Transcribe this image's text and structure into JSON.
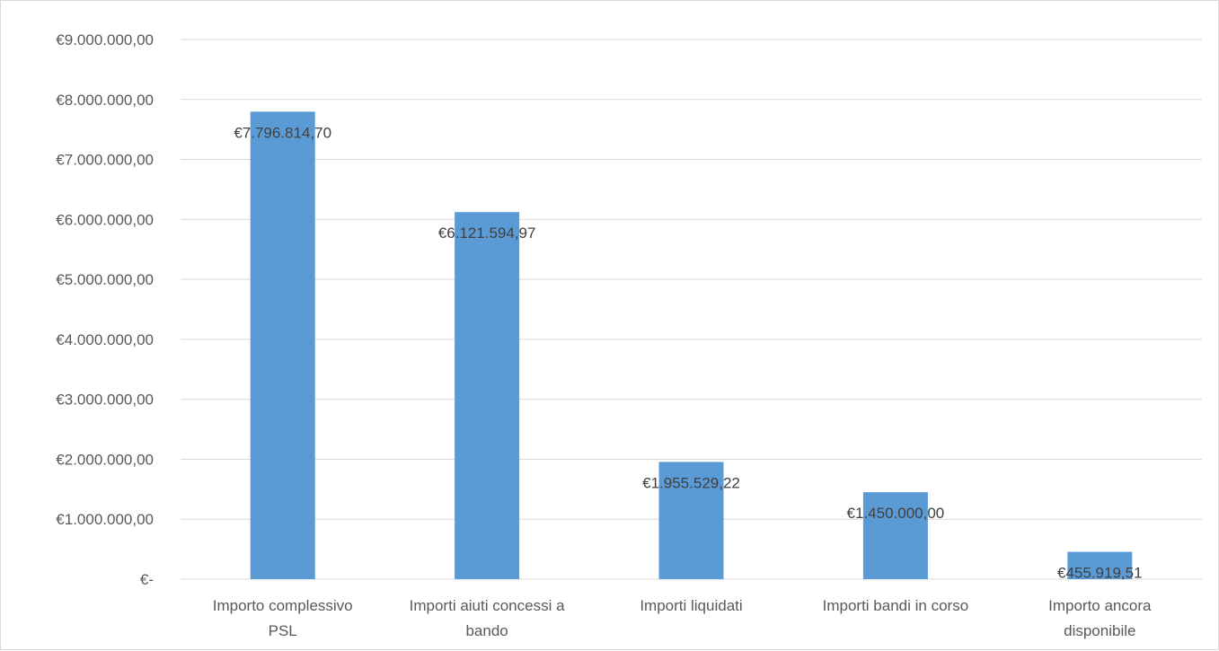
{
  "chart_data": {
    "type": "bar",
    "categories": [
      [
        "Importo complessivo",
        "PSL"
      ],
      [
        "Importi aiuti concessi a",
        "bando"
      ],
      [
        "Importi liquidati"
      ],
      [
        "Importi bandi in corso"
      ],
      [
        "Importo ancora",
        "disponibile"
      ]
    ],
    "values": [
      7796814.7,
      6121594.97,
      1955529.22,
      1450000.0,
      455919.51
    ],
    "data_labels": [
      "€7.796.814,70",
      "€6.121.594,97",
      "€1.955.529,22",
      "€1.450.000,00",
      "€455.919,51"
    ],
    "ylim": [
      0,
      9000000
    ],
    "yticks": [
      0,
      1000000,
      2000000,
      3000000,
      4000000,
      5000000,
      6000000,
      7000000,
      8000000,
      9000000
    ],
    "ytick_labels": [
      "€-",
      "€1.000.000,00",
      "€2.000.000,00",
      "€3.000.000,00",
      "€4.000.000,00",
      "€5.000.000,00",
      "€6.000.000,00",
      "€7.000.000,00",
      "€8.000.000,00",
      "€9.000.000,00"
    ],
    "title": "",
    "xlabel": "",
    "ylabel": "",
    "grid": true,
    "legend": "none",
    "bar_color": "#5b9bd5"
  }
}
